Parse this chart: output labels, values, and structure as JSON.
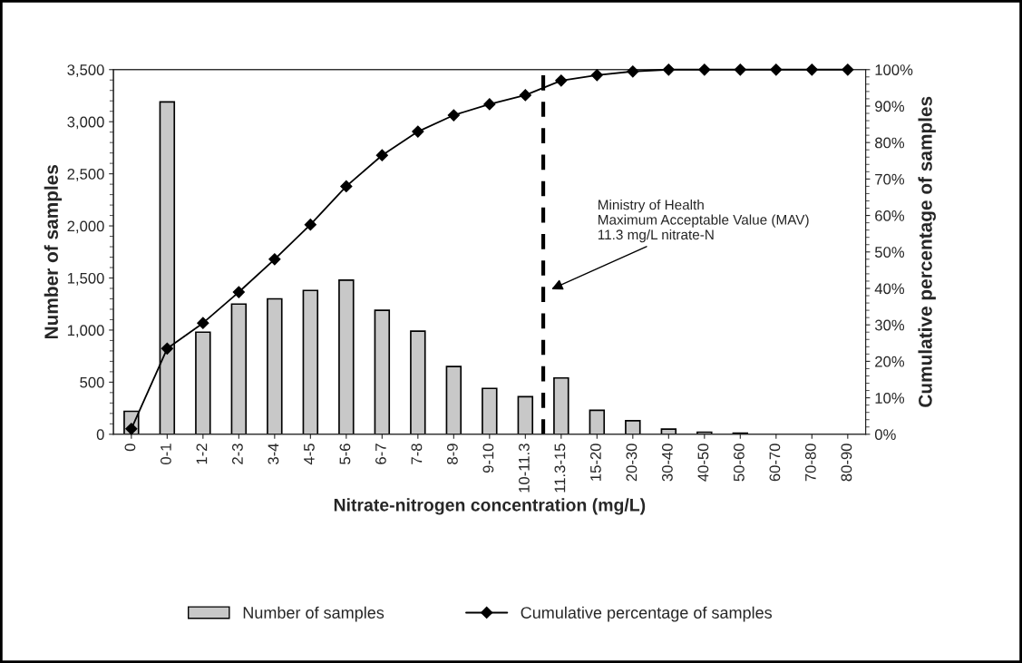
{
  "chart_data": {
    "type": "bar",
    "categories": [
      "0",
      "0-1",
      "1-2",
      "2-3",
      "3-4",
      "4-5",
      "5-6",
      "6-7",
      "7-8",
      "8-9",
      "9-10",
      "10-11.3",
      "11.3-15",
      "15-20",
      "20-30",
      "30-40",
      "40-50",
      "50-60",
      "60-70",
      "70-80",
      "80-90"
    ],
    "xlabel": "Nitrate-nitrogen concentration (mg/L)",
    "ylabel": "Number of samples",
    "y2label": "Cumulative percentage of samples",
    "series": [
      {
        "name": "Number of samples",
        "color": "#c8c8c8",
        "values": [
          220,
          3190,
          980,
          1250,
          1300,
          1380,
          1480,
          1190,
          990,
          650,
          440,
          360,
          540,
          230,
          130,
          50,
          20,
          10,
          null,
          null,
          null
        ]
      },
      {
        "name": "Cumulative percentage of samples",
        "type": "line",
        "axis": "y2",
        "color": "#000000",
        "marker": "diamond",
        "values": [
          1.5,
          23.5,
          30.5,
          39,
          48,
          57.5,
          68,
          76.5,
          83,
          87.5,
          90.5,
          93,
          97,
          98.5,
          99.5,
          100,
          100,
          100,
          100,
          100,
          100
        ]
      }
    ],
    "ylim": [
      0,
      3500
    ],
    "yticks": [
      0,
      500,
      {
        "value": 1000,
        "label": "1,000"
      },
      {
        "value": 1500,
        "label": "1,500"
      },
      {
        "value": 2000,
        "label": "2,000"
      },
      {
        "value": 2500,
        "label": "2,500"
      },
      {
        "value": 3000,
        "label": "3,000"
      },
      {
        "value": 3500,
        "label": "3,500"
      }
    ],
    "y2lim": [
      0,
      100
    ],
    "y2ticks": [
      {
        "value": 0,
        "label": "0%"
      },
      {
        "value": 10,
        "label": "10%"
      },
      {
        "value": 20,
        "label": "20%"
      },
      {
        "value": 30,
        "label": "30%"
      },
      {
        "value": 40,
        "label": "40%"
      },
      {
        "value": 50,
        "label": "50%"
      },
      {
        "value": 60,
        "label": "60%"
      },
      {
        "value": 70,
        "label": "70%"
      },
      {
        "value": 80,
        "label": "80%"
      },
      {
        "value": 90,
        "label": "90%"
      },
      {
        "value": 100,
        "label": "100%"
      }
    ],
    "annotations": [
      "Ministry of Health\nMaximum Acceptable Value (MAV)\n11.3 mg/L nitrate-N"
    ],
    "grid": false,
    "legend": "bottom"
  }
}
